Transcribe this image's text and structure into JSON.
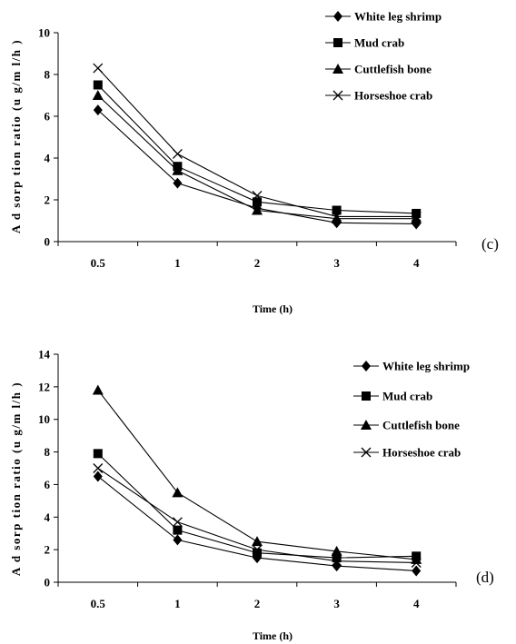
{
  "chart_data": [
    {
      "type": "line",
      "panel_label": "(c)",
      "xlabel": "Time (h)",
      "ylabel": "A d sorp tion  ratio  (u g/m l/h )",
      "categories": [
        "0.5",
        "1",
        "2",
        "3",
        "4"
      ],
      "ylim": [
        0,
        10
      ],
      "yticks": [
        "0",
        "2",
        "4",
        "6",
        "8",
        "10"
      ],
      "legend_position": "top-right",
      "series": [
        {
          "name": "White leg shrimp",
          "marker": "diamond",
          "values": [
            6.3,
            2.8,
            1.6,
            0.9,
            0.85
          ]
        },
        {
          "name": "Mud crab",
          "marker": "square",
          "values": [
            7.5,
            3.6,
            1.9,
            1.5,
            1.35
          ]
        },
        {
          "name": "Cuttlefish bone",
          "marker": "triangle",
          "values": [
            7.0,
            3.4,
            1.5,
            1.1,
            1.1
          ]
        },
        {
          "name": "Horseshoe crab",
          "marker": "x",
          "values": [
            8.3,
            4.2,
            2.2,
            1.2,
            1.2
          ]
        }
      ]
    },
    {
      "type": "line",
      "panel_label": "(d)",
      "xlabel": "Time (h)",
      "ylabel": "A d sorp tion  ratio  (u g/m l/h )",
      "categories": [
        "0.5",
        "1",
        "2",
        "3",
        "4"
      ],
      "ylim": [
        0,
        14
      ],
      "yticks": [
        "0",
        "2",
        "4",
        "6",
        "8",
        "10",
        "12",
        "14"
      ],
      "legend_position": "top-right",
      "series": [
        {
          "name": "White leg shrimp",
          "marker": "diamond",
          "values": [
            6.5,
            2.6,
            1.5,
            1.0,
            0.7
          ]
        },
        {
          "name": "Mud crab",
          "marker": "square",
          "values": [
            7.9,
            3.2,
            1.8,
            1.5,
            1.6
          ]
        },
        {
          "name": "Cuttlefish bone",
          "marker": "triangle",
          "values": [
            11.8,
            5.5,
            2.5,
            1.9,
            1.4
          ]
        },
        {
          "name": "Horseshoe crab",
          "marker": "x",
          "values": [
            7.0,
            3.7,
            2.0,
            1.3,
            1.2
          ]
        }
      ]
    }
  ]
}
